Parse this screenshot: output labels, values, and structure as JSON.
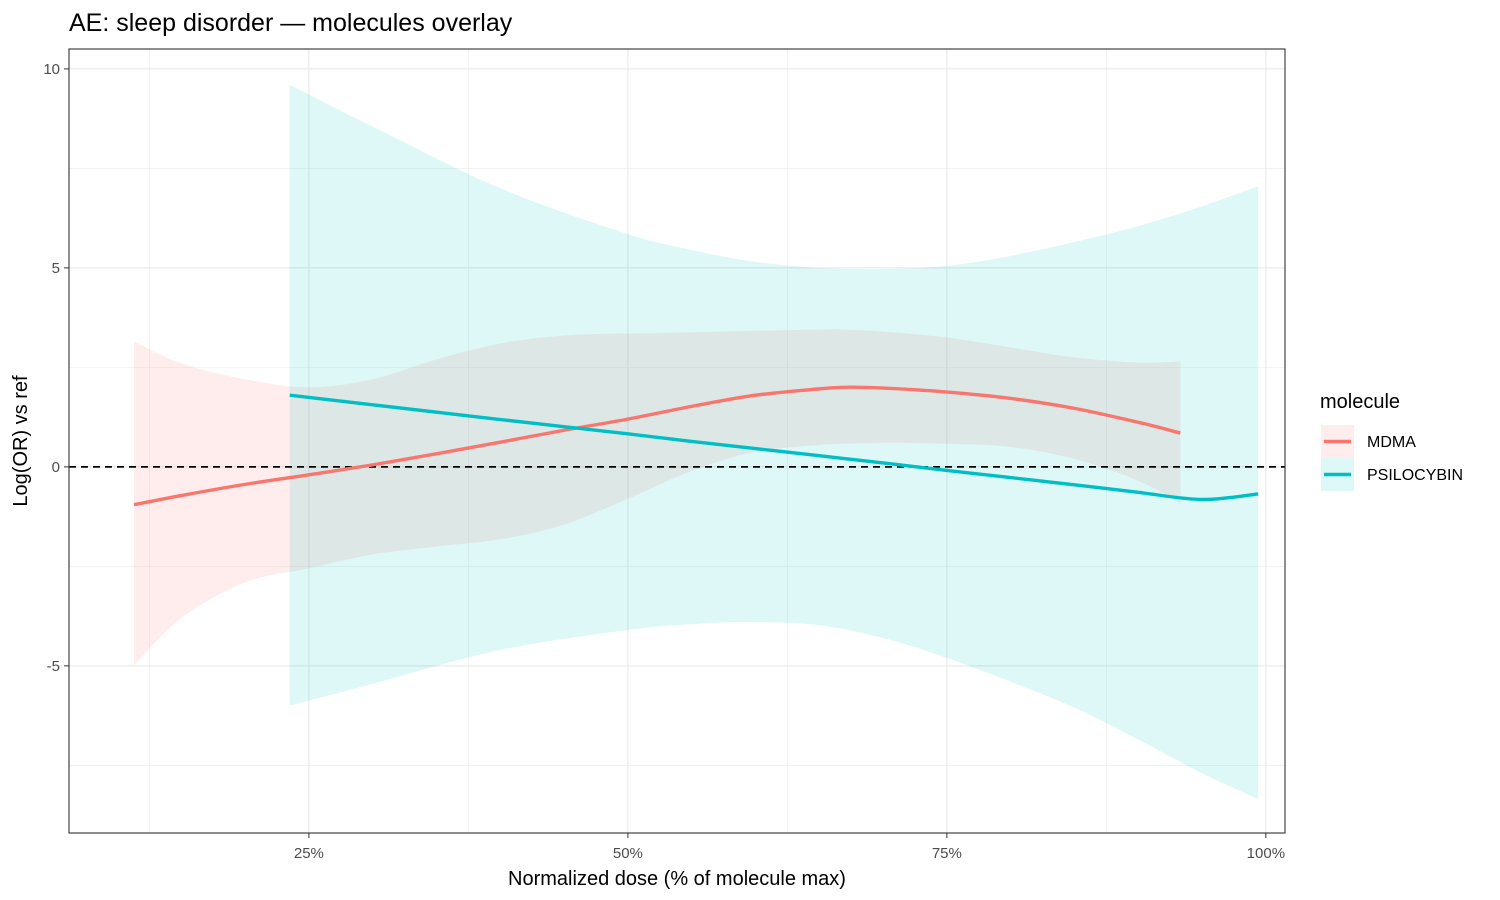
{
  "chart_data": {
    "type": "line",
    "title": "AE: sleep disorder — molecules overlay",
    "xlabel": "Normalized dose (% of molecule max)",
    "ylabel": "Log(OR) vs ref",
    "xlim": [
      6.2,
      101.5
    ],
    "ylim": [
      -9.2,
      10.5
    ],
    "x_ticks": [
      25,
      50,
      75,
      100
    ],
    "x_tick_labels": [
      "25%",
      "50%",
      "75%",
      "100%"
    ],
    "y_ticks": [
      -5,
      0,
      5,
      10
    ],
    "y_tick_labels": [
      "-5",
      "0",
      "5",
      "10"
    ],
    "grid": true,
    "reference_line": {
      "y": 0,
      "style": "dashed",
      "color": "#000000"
    },
    "legend": {
      "title": "molecule",
      "placement": "right"
    },
    "series": [
      {
        "name": "MDMA",
        "color": "#F8766D",
        "x": [
          11.3,
          15,
          20,
          25,
          30,
          35,
          40,
          45,
          50,
          55,
          60,
          65,
          67,
          70,
          75,
          80,
          85,
          90,
          93.3
        ],
        "y": [
          -0.95,
          -0.72,
          -0.44,
          -0.2,
          0.05,
          0.33,
          0.62,
          0.92,
          1.2,
          1.52,
          1.8,
          1.96,
          2.0,
          1.98,
          1.88,
          1.72,
          1.47,
          1.12,
          0.85
        ],
        "lower": [
          -4.98,
          -3.8,
          -2.9,
          -2.55,
          -2.2,
          -2.0,
          -1.82,
          -1.45,
          -0.8,
          -0.1,
          0.38,
          0.55,
          0.58,
          0.6,
          0.58,
          0.5,
          0.2,
          -0.35,
          -0.92
        ],
        "upper": [
          3.15,
          2.6,
          2.2,
          2.0,
          2.2,
          2.7,
          3.1,
          3.3,
          3.35,
          3.38,
          3.42,
          3.45,
          3.45,
          3.4,
          3.25,
          3.0,
          2.75,
          2.62,
          2.65
        ]
      },
      {
        "name": "PSILOCYBIN",
        "color": "#00BFC4",
        "x": [
          23.5,
          30,
          40,
          50,
          55,
          60,
          65,
          70,
          75,
          80,
          85,
          90,
          95,
          99.4
        ],
        "y": [
          1.8,
          1.56,
          1.19,
          0.83,
          0.64,
          0.46,
          0.28,
          0.1,
          -0.09,
          -0.27,
          -0.45,
          -0.64,
          -0.82,
          -0.68
        ],
        "lower": [
          -6.0,
          -5.45,
          -4.6,
          -4.1,
          -3.95,
          -3.9,
          -3.98,
          -4.3,
          -4.8,
          -5.4,
          -6.05,
          -6.85,
          -7.7,
          -8.35
        ],
        "upper": [
          9.6,
          8.55,
          7.0,
          5.85,
          5.45,
          5.15,
          5.0,
          4.97,
          5.05,
          5.3,
          5.65,
          6.05,
          6.55,
          7.05
        ]
      }
    ]
  }
}
